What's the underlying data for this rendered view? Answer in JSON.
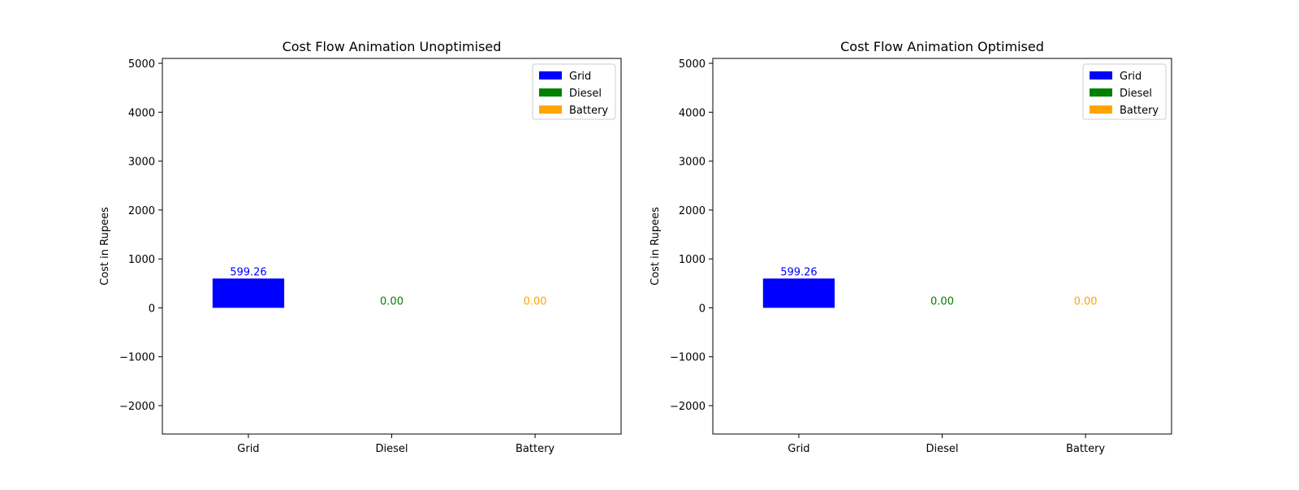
{
  "chart_data": [
    {
      "type": "bar",
      "title": "Cost Flow Animation Unoptimised",
      "xlabel": "",
      "ylabel": "Cost in Rupees",
      "categories": [
        "Grid",
        "Diesel",
        "Battery"
      ],
      "values": [
        599.26,
        0.0,
        0.0
      ],
      "value_labels": [
        "599.26",
        "0.00",
        "0.00"
      ],
      "colors": [
        "#0000ff",
        "#008000",
        "#ffa500"
      ],
      "ylim": [
        -2580,
        5100
      ],
      "yticks": [
        -2000,
        -1000,
        0,
        1000,
        2000,
        3000,
        4000,
        5000
      ],
      "ytick_labels": [
        "−2000",
        "−1000",
        "0",
        "1000",
        "2000",
        "3000",
        "4000",
        "5000"
      ],
      "grid": false,
      "legend": {
        "placement": "top-right",
        "entries": [
          "Grid",
          "Diesel",
          "Battery"
        ]
      }
    },
    {
      "type": "bar",
      "title": "Cost Flow Animation Optimised",
      "xlabel": "",
      "ylabel": "Cost in Rupees",
      "categories": [
        "Grid",
        "Diesel",
        "Battery"
      ],
      "values": [
        599.26,
        0.0,
        0.0
      ],
      "value_labels": [
        "599.26",
        "0.00",
        "0.00"
      ],
      "colors": [
        "#0000ff",
        "#008000",
        "#ffa500"
      ],
      "ylim": [
        -2580,
        5100
      ],
      "yticks": [
        -2000,
        -1000,
        0,
        1000,
        2000,
        3000,
        4000,
        5000
      ],
      "ytick_labels": [
        "−2000",
        "−1000",
        "0",
        "1000",
        "2000",
        "3000",
        "4000",
        "5000"
      ],
      "grid": false,
      "legend": {
        "placement": "top-right",
        "entries": [
          "Grid",
          "Diesel",
          "Battery"
        ]
      }
    }
  ]
}
